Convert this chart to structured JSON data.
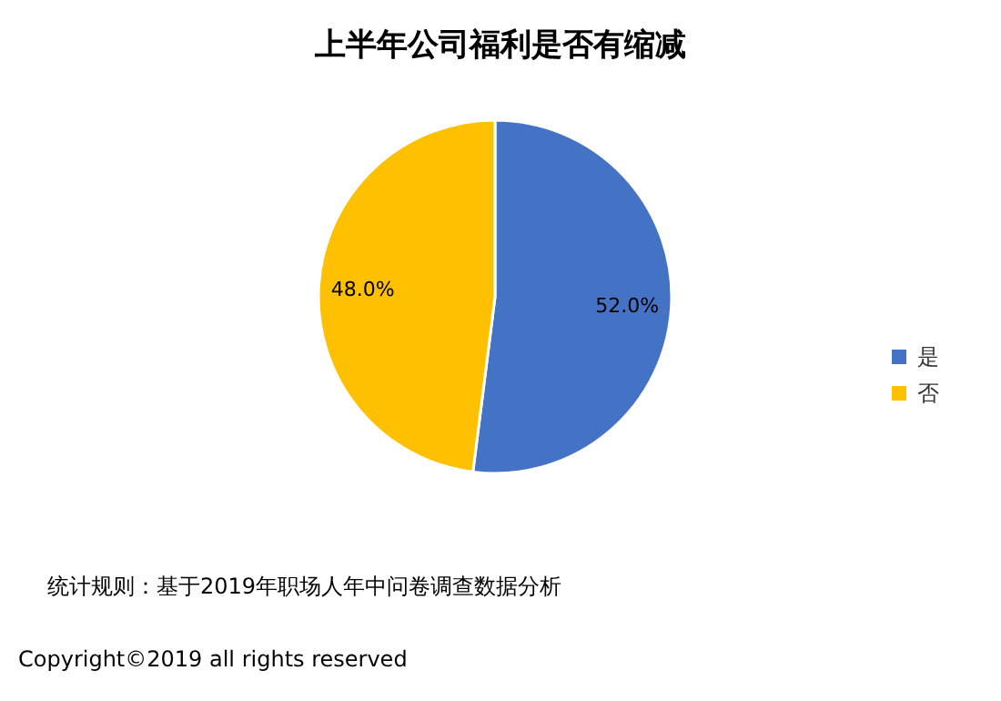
{
  "chart_data": {
    "type": "pie",
    "title": "上半年公司福利是否有缩减",
    "categories": [
      "是",
      "否"
    ],
    "values": [
      52.0,
      48.0
    ],
    "colors": [
      "#4472c4",
      "#ffc000"
    ],
    "value_labels": [
      "52.0%",
      "48.0%"
    ],
    "legend": "right",
    "annotations": [
      "统计规则：基于2019年职场人年中问卷调查数据分析",
      "Copyright©2019 all rights reserved"
    ]
  }
}
